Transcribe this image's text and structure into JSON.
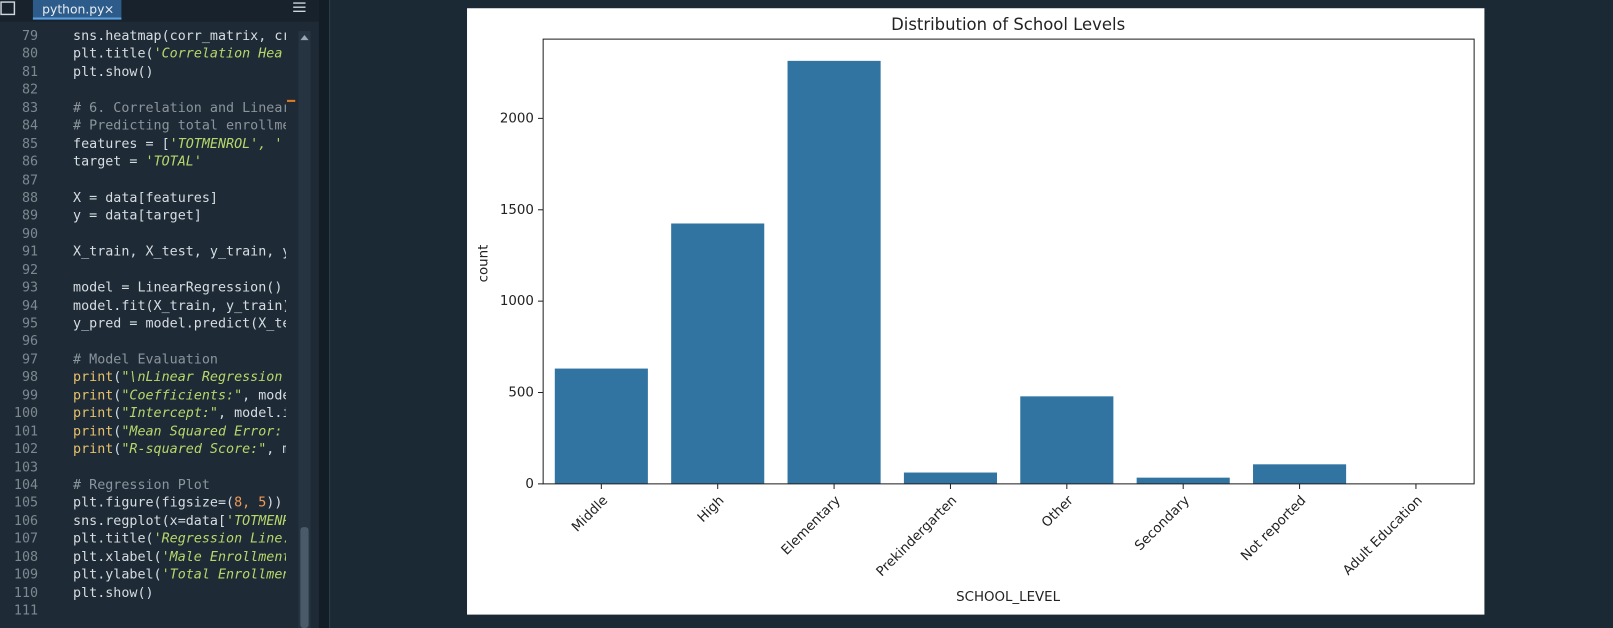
{
  "editor": {
    "tab": "python.py",
    "lines": [
      {
        "number": 79,
        "code": [
          {
            "text": "sns.heatmap(corr_matrix, cr",
            "style": "plain"
          }
        ]
      },
      {
        "number": 80,
        "code": [
          {
            "text": "plt.title(",
            "style": "plain"
          },
          {
            "text": "'Correlation Hea",
            "style": "string"
          }
        ]
      },
      {
        "number": 81,
        "code": [
          {
            "text": "plt.show()",
            "style": "plain"
          }
        ]
      },
      {
        "number": 82,
        "code": []
      },
      {
        "number": 83,
        "code": [
          {
            "text": "# 6. Correlation and Linear",
            "style": "comment"
          }
        ]
      },
      {
        "number": 84,
        "code": [
          {
            "text": "# Predicting total enrollme",
            "style": "comment"
          }
        ]
      },
      {
        "number": 85,
        "code": [
          {
            "text": "features = [",
            "style": "plain"
          },
          {
            "text": "'TOTMENROL', '",
            "style": "string"
          }
        ]
      },
      {
        "number": 86,
        "code": [
          {
            "text": "target = ",
            "style": "plain"
          },
          {
            "text": "'TOTAL'",
            "style": "string"
          }
        ]
      },
      {
        "number": 87,
        "code": []
      },
      {
        "number": 88,
        "code": [
          {
            "text": "X = data[features]",
            "style": "plain"
          }
        ]
      },
      {
        "number": 89,
        "code": [
          {
            "text": "y = data[target]",
            "style": "plain"
          }
        ]
      },
      {
        "number": 90,
        "code": []
      },
      {
        "number": 91,
        "code": [
          {
            "text": "X_train, X_test, y_train, y",
            "style": "plain"
          }
        ]
      },
      {
        "number": 92,
        "code": []
      },
      {
        "number": 93,
        "code": [
          {
            "text": "model = LinearRegression()",
            "style": "plain"
          }
        ]
      },
      {
        "number": 94,
        "code": [
          {
            "text": "model.fit(X_train, y_train)",
            "style": "plain"
          }
        ]
      },
      {
        "number": 95,
        "code": [
          {
            "text": "y_pred = model.predict(X_te",
            "style": "plain"
          }
        ]
      },
      {
        "number": 96,
        "code": []
      },
      {
        "number": 97,
        "code": [
          {
            "text": "# Model Evaluation",
            "style": "comment"
          }
        ]
      },
      {
        "number": 98,
        "code": [
          {
            "text": "print",
            "style": "keyword"
          },
          {
            "text": "(",
            "style": "plain"
          },
          {
            "text": "\"\\nLinear Regression",
            "style": "string"
          }
        ]
      },
      {
        "number": 99,
        "code": [
          {
            "text": "print",
            "style": "keyword"
          },
          {
            "text": "(",
            "style": "plain"
          },
          {
            "text": "\"Coefficients:\"",
            "style": "string"
          },
          {
            "text": ", mode",
            "style": "plain"
          }
        ]
      },
      {
        "number": 100,
        "code": [
          {
            "text": "print",
            "style": "keyword"
          },
          {
            "text": "(",
            "style": "plain"
          },
          {
            "text": "\"Intercept:\"",
            "style": "string"
          },
          {
            "text": ", model.i",
            "style": "plain"
          }
        ]
      },
      {
        "number": 101,
        "code": [
          {
            "text": "print",
            "style": "keyword"
          },
          {
            "text": "(",
            "style": "plain"
          },
          {
            "text": "\"Mean Squared Error:",
            "style": "string"
          }
        ]
      },
      {
        "number": 102,
        "code": [
          {
            "text": "print",
            "style": "keyword"
          },
          {
            "text": "(",
            "style": "plain"
          },
          {
            "text": "\"R-squared Score:\"",
            "style": "string"
          },
          {
            "text": ", m",
            "style": "plain"
          }
        ]
      },
      {
        "number": 103,
        "code": []
      },
      {
        "number": 104,
        "code": [
          {
            "text": "# Regression Plot",
            "style": "comment"
          }
        ]
      },
      {
        "number": 105,
        "code": [
          {
            "text": "plt.figure(figsize=(",
            "style": "plain"
          },
          {
            "text": "8, 5",
            "style": "number"
          },
          {
            "text": "))",
            "style": "plain"
          }
        ]
      },
      {
        "number": 106,
        "code": [
          {
            "text": "sns.regplot(x=data[",
            "style": "plain"
          },
          {
            "text": "'TOTMENR",
            "style": "string"
          }
        ]
      },
      {
        "number": 107,
        "code": [
          {
            "text": "plt.title(",
            "style": "plain"
          },
          {
            "text": "'Regression Line.",
            "style": "string"
          }
        ]
      },
      {
        "number": 108,
        "code": [
          {
            "text": "plt.xlabel(",
            "style": "plain"
          },
          {
            "text": "'Male Enrollment",
            "style": "string"
          }
        ]
      },
      {
        "number": 109,
        "code": [
          {
            "text": "plt.ylabel(",
            "style": "plain"
          },
          {
            "text": "'Total Enrollmen",
            "style": "string"
          }
        ]
      },
      {
        "number": 110,
        "code": [
          {
            "text": "plt.show()",
            "style": "plain"
          }
        ]
      },
      {
        "number": 111,
        "code": []
      }
    ]
  },
  "chart_data": {
    "type": "bar",
    "title": "Distribution of School Levels",
    "x_label": "SCHOOL_LEVEL",
    "y_label": "count",
    "categories": [
      "Middle",
      "High",
      "Elementary",
      "Prekindergarten",
      "Other",
      "Secondary",
      "Not reported",
      "Adult Education"
    ],
    "values": [
      631,
      1425,
      2315,
      62,
      479,
      34,
      107,
      1
    ],
    "color": "#3274a1",
    "ylim": [
      0,
      2434
    ],
    "yticks": [
      0,
      500,
      1000,
      1500,
      2000
    ],
    "grid": false
  }
}
